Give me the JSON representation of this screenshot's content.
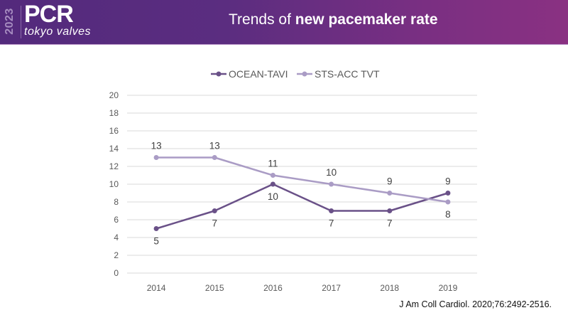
{
  "header": {
    "logo_year": "2023",
    "logo_main": "PCR",
    "logo_sub": "tokyo valves",
    "title_prefix": "Trends of ",
    "title_bold": "new pacemaker rate"
  },
  "citation": "J Am Coll Cardiol. 2020;76:2492-2516.",
  "colors": {
    "ocean_tavi": "#6a5188",
    "sts_acc_tvt": "#aa9cc5",
    "grid": "#d9d9d9",
    "header_start": "#532a7c",
    "header_end": "#8a3182"
  },
  "chart_data": {
    "type": "line",
    "title": "Trends of new pacemaker rate",
    "xlabel": "",
    "ylabel": "",
    "categories": [
      "2014",
      "2015",
      "2016",
      "2017",
      "2018",
      "2019"
    ],
    "series": [
      {
        "name": "OCEAN-TAVI",
        "values": [
          5,
          7,
          10,
          7,
          7,
          9
        ],
        "label_pos": [
          "below",
          "below",
          "below",
          "below",
          "below",
          "above"
        ]
      },
      {
        "name": "STS-ACC TVT",
        "values": [
          13,
          13,
          11,
          10,
          9,
          8
        ],
        "label_pos": [
          "above",
          "above",
          "above",
          "above",
          "above",
          "below"
        ]
      }
    ],
    "ylim": [
      0,
      20
    ],
    "yticks": [
      0,
      2,
      4,
      6,
      8,
      10,
      12,
      14,
      16,
      18,
      20
    ],
    "grid": true,
    "legend": "top-center",
    "data_labels": true
  }
}
